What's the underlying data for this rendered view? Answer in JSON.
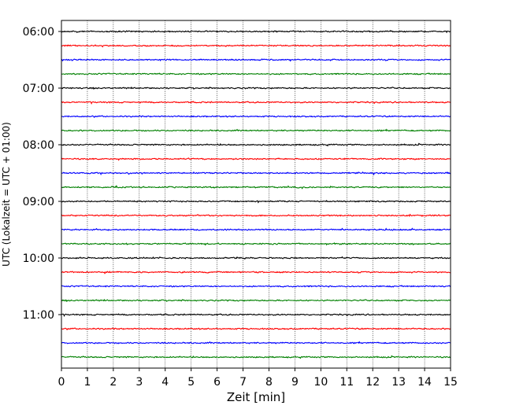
{
  "chart_data": {
    "type": "line",
    "xlabel": "Zeit  [min]",
    "ylabel": "UTC (Lokalzeit = UTC + 01:00)",
    "xlim": [
      0,
      15
    ],
    "x_ticks": [
      0,
      1,
      2,
      3,
      4,
      5,
      6,
      7,
      8,
      9,
      10,
      11,
      12,
      13,
      14,
      15
    ],
    "y_tick_labels": [
      "06:00",
      "07:00",
      "08:00",
      "09:00",
      "10:00",
      "11:00"
    ],
    "trace_interval_minutes": 15,
    "start_time": "06:00",
    "trace_count": 24,
    "colors": [
      "#000000",
      "#ff0000",
      "#0000ff",
      "#008000"
    ],
    "grid": "vertical-dotted",
    "description_of_traces": "Seismogram helicorder: each row is a 15-minute trace; small-amplitude noise around baseline."
  }
}
